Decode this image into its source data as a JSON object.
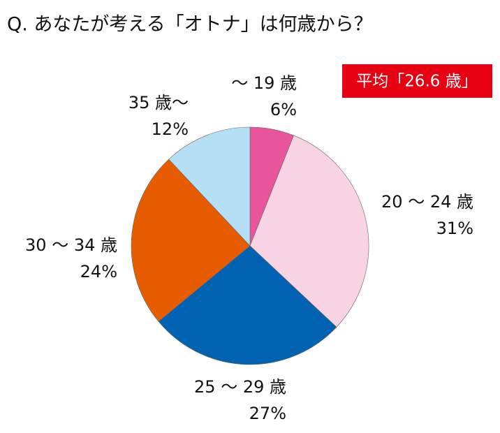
{
  "chart_data": {
    "type": "pie",
    "title": "Q. あなたが考える「オトナ」は何歳から？",
    "annotation": "平均「26.6 歳」",
    "categories": [
      "～ 19 歳",
      "20 ～ 24 歳",
      "25 ～ 29 歳",
      "30 ～ 34 歳",
      "35 歳～"
    ],
    "values": [
      6,
      31,
      27,
      24,
      12
    ],
    "value_labels": [
      "6%",
      "31%",
      "27%",
      "24%",
      "12%"
    ],
    "colors": [
      "#e8559a",
      "#f8d3e3",
      "#0062b1",
      "#e85c00",
      "#b5dff5"
    ]
  }
}
